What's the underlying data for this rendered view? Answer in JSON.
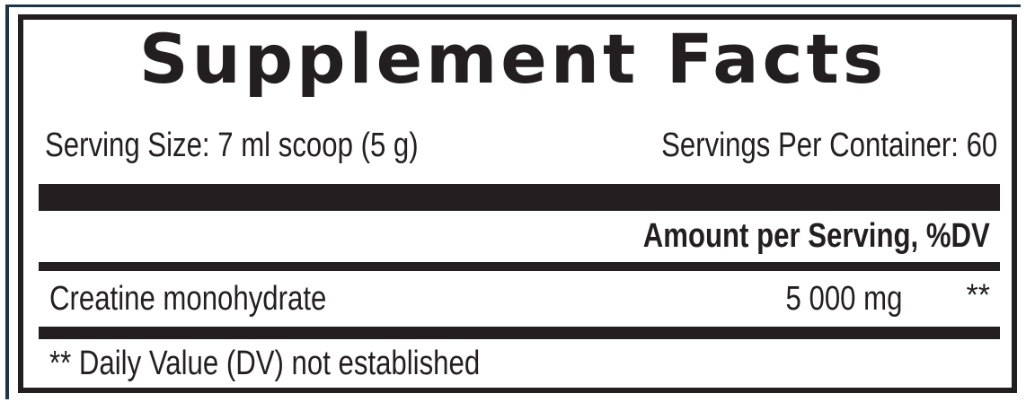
{
  "title": "Supplement Facts",
  "serving_size": "Serving Size: 7 ml scoop (5 g)",
  "servings_per_container": "Servings Per Container: 60",
  "amount_header": "Amount per Serving, %DV",
  "ingredients": [
    {
      "name": "Creatine monohydrate",
      "amount": "5 000 mg",
      "dv": "**"
    }
  ],
  "footnote": "** Daily Value (DV) not established",
  "colors": {
    "text": "#231f20",
    "outer_border": "#1d3548"
  }
}
